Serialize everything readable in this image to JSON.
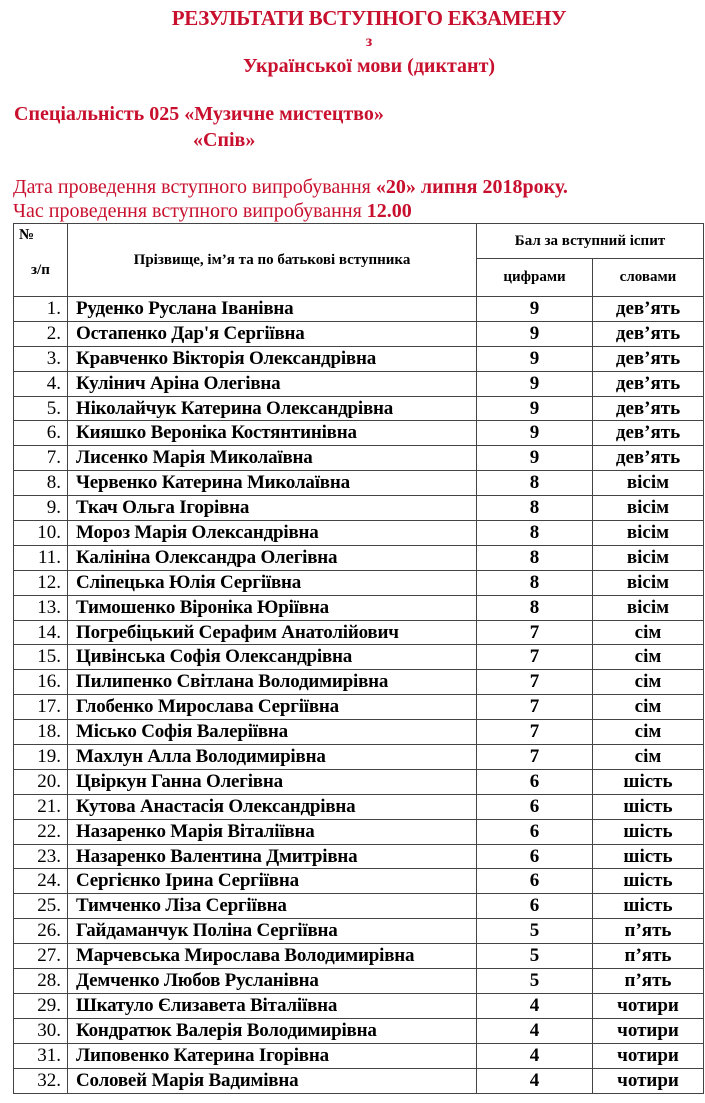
{
  "header": {
    "title": "РЕЗУЛЬТАТИ ВСТУПНОГО ЕКЗАМЕНУ",
    "preposition": "з",
    "subject": "Української мови (диктант)",
    "specialty": "Спеціальність 025 «Музичне мистецтво»",
    "specialization": "«Спів»",
    "date_label": "Дата проведення вступного випробування",
    "date_value": "«20» липня 2018року.",
    "time_label": "Час проведення вступного випробування",
    "time_value": "12.00"
  },
  "colors": {
    "heading": "#c8102e",
    "text": "#000000"
  },
  "table": {
    "col_no_top": "№",
    "col_no_bottom": "з/п",
    "col_name": "Прізвище, ім’я та по батькові вступника",
    "col_score": "Бал за вступний іспит",
    "col_digits": "цифрами",
    "col_words": "словами",
    "rows": [
      {
        "no": "1.",
        "name": "Руденко Руслана Іванівна",
        "digits": "9",
        "words": "дев’ять"
      },
      {
        "no": "2.",
        "name": "Остапенко Дар'я Сергіївна",
        "digits": "9",
        "words": "дев’ять"
      },
      {
        "no": "3.",
        "name": "Кравченко Вікторія Олександрівна",
        "digits": "9",
        "words": "дев’ять"
      },
      {
        "no": "4.",
        "name": "Кулінич Аріна Олегівна",
        "digits": "9",
        "words": "дев’ять"
      },
      {
        "no": "5.",
        "name": "Ніколайчук Катерина Олександрівна",
        "digits": "9",
        "words": "дев’ять"
      },
      {
        "no": "6.",
        "name": "Кияшко Вероніка Костянтинівна",
        "digits": "9",
        "words": "дев’ять"
      },
      {
        "no": "7.",
        "name": "Лисенко Марія Миколаївна",
        "digits": "9",
        "words": "дев’ять"
      },
      {
        "no": "8.",
        "name": "Червенко Катерина Миколаївна",
        "digits": "8",
        "words": "вісім"
      },
      {
        "no": "9.",
        "name": "Ткач Ольга Ігорівна",
        "digits": "8",
        "words": "вісім"
      },
      {
        "no": "10.",
        "name": "Мороз Марія Олександрівна",
        "digits": "8",
        "words": "вісім"
      },
      {
        "no": "11.",
        "name": "Калініна Олександра Олегівна",
        "digits": "8",
        "words": "вісім"
      },
      {
        "no": "12.",
        "name": "Сліпецька Юлія Сергіївна",
        "digits": "8",
        "words": "вісім"
      },
      {
        "no": "13.",
        "name": "Тимошенко Віроніка Юріївна",
        "digits": "8",
        "words": "вісім"
      },
      {
        "no": "14.",
        "name": "Погребіцький Серафим Анатолійович",
        "digits": "7",
        "words": "сім"
      },
      {
        "no": "15.",
        "name": "Цивінська Софія Олександрівна",
        "digits": "7",
        "words": "сім"
      },
      {
        "no": "16.",
        "name": "Пилипенко Світлана Володимирівна",
        "digits": "7",
        "words": "сім"
      },
      {
        "no": "17.",
        "name": "Глобенко Мирослава Сергіївна",
        "digits": "7",
        "words": "сім"
      },
      {
        "no": "18.",
        "name": "Місько Софія Валеріївна",
        "digits": "7",
        "words": "сім"
      },
      {
        "no": "19.",
        "name": "Махлун Алла Володимирівна",
        "digits": "7",
        "words": "сім"
      },
      {
        "no": "20.",
        "name": "Цвіркун Ганна Олегівна",
        "digits": "6",
        "words": "шість"
      },
      {
        "no": "21.",
        "name": "Кутова Анастасія Олександрівна",
        "digits": "6",
        "words": "шість"
      },
      {
        "no": "22.",
        "name": "Назаренко Марія Віталіївна",
        "digits": "6",
        "words": "шість"
      },
      {
        "no": "23.",
        "name": "Назаренко Валентина Дмитрівна",
        "digits": "6",
        "words": "шість"
      },
      {
        "no": "24.",
        "name": "Сергієнко Ірина Сергіївна",
        "digits": "6",
        "words": "шість"
      },
      {
        "no": "25.",
        "name": "Тимченко Ліза Сергіївна",
        "digits": "6",
        "words": "шість"
      },
      {
        "no": "26.",
        "name": "Гайдаманчук Поліна Сергіївна",
        "digits": "5",
        "words": "п’ять"
      },
      {
        "no": "27.",
        "name": "Марчевська Мирослава Володимирівна",
        "digits": "5",
        "words": "п’ять"
      },
      {
        "no": "28.",
        "name": "Демченко Любов Русланівна",
        "digits": "5",
        "words": "п’ять"
      },
      {
        "no": "29.",
        "name": "Шкатуло Єлизавета Віталіївна",
        "digits": "4",
        "words": "чотири"
      },
      {
        "no": "30.",
        "name": "Кондратюк Валерія Володимирівна",
        "digits": "4",
        "words": "чотири"
      },
      {
        "no": "31.",
        "name": "Липовенко Катерина Ігорівна",
        "digits": "4",
        "words": "чотири"
      },
      {
        "no": "32.",
        "name": "Соловей Марія Вадимівна",
        "digits": "4",
        "words": "чотири"
      }
    ]
  }
}
